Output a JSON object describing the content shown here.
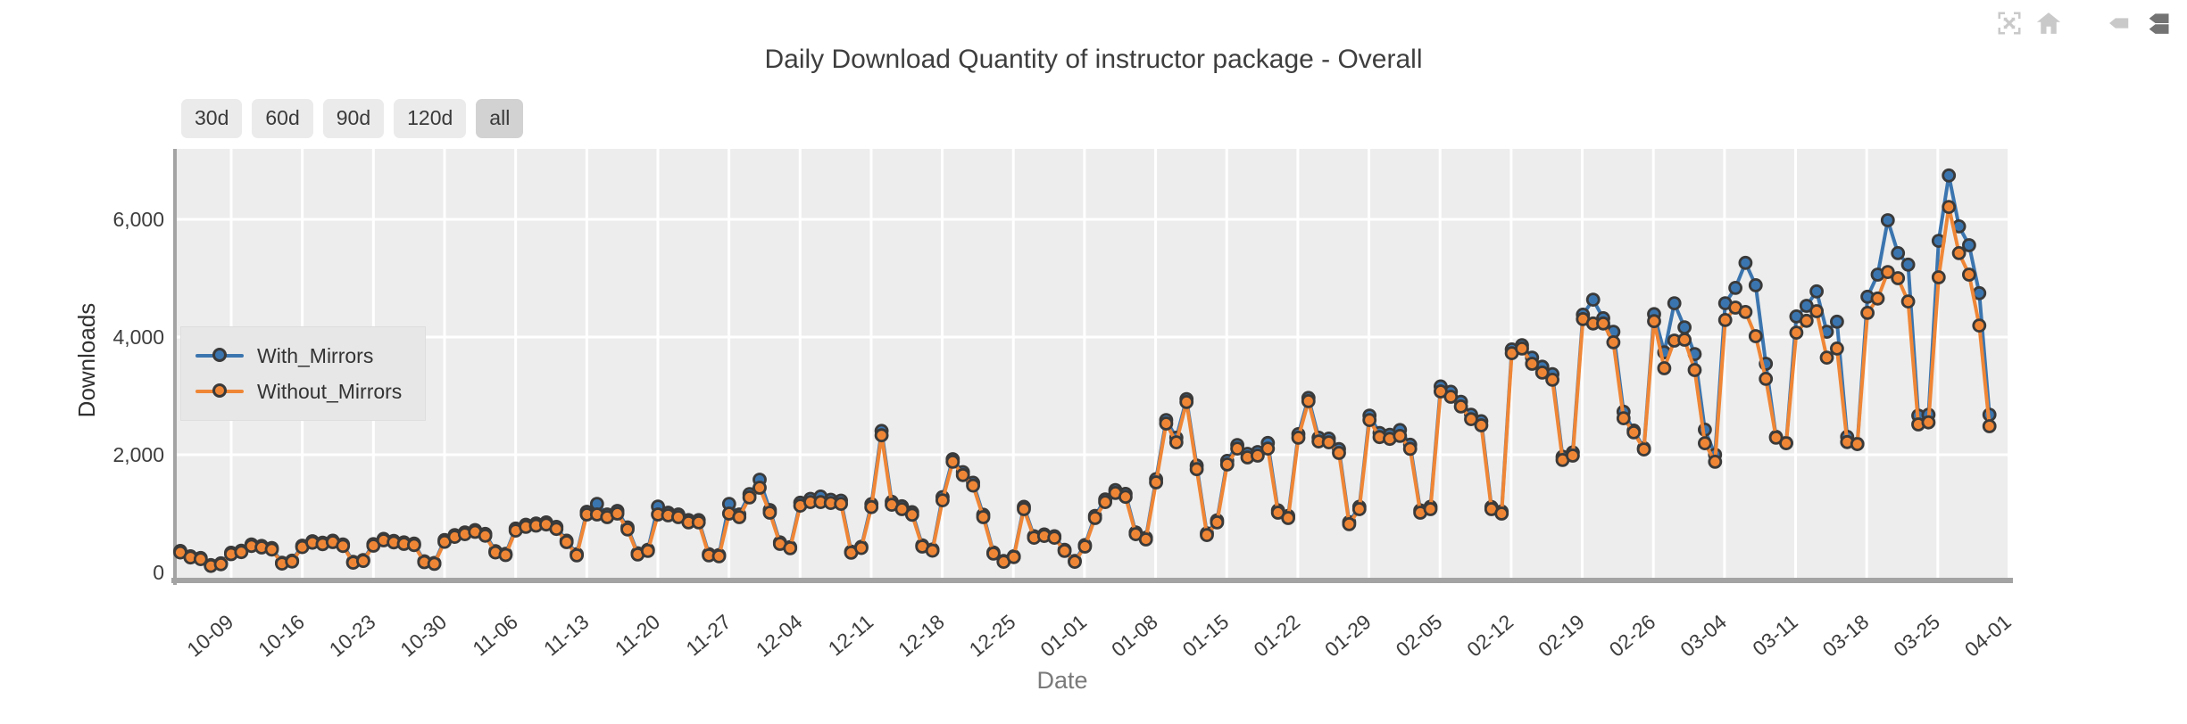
{
  "header": {
    "title": "Daily Download Quantity of instructor package - Overall"
  },
  "toolbar": {
    "buttons": [
      {
        "label": "30d",
        "active": false
      },
      {
        "label": "60d",
        "active": false
      },
      {
        "label": "90d",
        "active": false
      },
      {
        "label": "120d",
        "active": false
      },
      {
        "label": "all",
        "active": true
      }
    ]
  },
  "modebar": {
    "inactive_color": "#c9c9c9",
    "active_color": "#737373",
    "icons": [
      {
        "name": "autoscale",
        "active": false
      },
      {
        "name": "reset-axes",
        "active": false
      },
      {
        "name": "hover-closest",
        "active": false
      },
      {
        "name": "hover-compare",
        "active": true
      }
    ]
  },
  "chart_data": {
    "type": "line",
    "title": "Daily Download Quantity of instructor package - Overall",
    "xlabel": "Date",
    "ylabel": "Downloads",
    "ylim": [
      0,
      7200
    ],
    "yticks": [
      0,
      2000,
      4000,
      6000
    ],
    "ytick_labels": [
      "0",
      "2,000",
      "4,000",
      "6,000"
    ],
    "xticks": [
      "10-09",
      "10-16",
      "10-23",
      "10-30",
      "11-06",
      "11-13",
      "11-20",
      "11-27",
      "12-04",
      "12-11",
      "12-18",
      "12-25",
      "01-01",
      "01-08",
      "01-15",
      "01-22",
      "01-29",
      "02-05",
      "02-12",
      "02-19",
      "02-26",
      "03-04",
      "03-11",
      "03-18",
      "03-25",
      "04-01"
    ],
    "grid": true,
    "legend_position": "middle-left",
    "plot_bg": "#ededed",
    "grid_color": "#ffffff",
    "spine_color": "#a3a3a3",
    "tick_color": "#3d3d3d",
    "marker_edge": "#3a3a3a",
    "dates": [
      "10-04",
      "10-05",
      "10-06",
      "10-07",
      "10-08",
      "10-09",
      "10-10",
      "10-11",
      "10-12",
      "10-13",
      "10-14",
      "10-15",
      "10-16",
      "10-17",
      "10-18",
      "10-19",
      "10-20",
      "10-21",
      "10-22",
      "10-23",
      "10-24",
      "10-25",
      "10-26",
      "10-27",
      "10-28",
      "10-29",
      "10-30",
      "10-31",
      "11-01",
      "11-02",
      "11-03",
      "11-04",
      "11-05",
      "11-06",
      "11-07",
      "11-08",
      "11-09",
      "11-10",
      "11-11",
      "11-12",
      "11-13",
      "11-14",
      "11-15",
      "11-16",
      "11-17",
      "11-18",
      "11-19",
      "11-20",
      "11-21",
      "11-22",
      "11-23",
      "11-24",
      "11-25",
      "11-26",
      "11-27",
      "11-28",
      "11-29",
      "11-30",
      "12-01",
      "12-02",
      "12-03",
      "12-04",
      "12-05",
      "12-06",
      "12-07",
      "12-08",
      "12-09",
      "12-10",
      "12-11",
      "12-12",
      "12-13",
      "12-14",
      "12-15",
      "12-16",
      "12-17",
      "12-18",
      "12-19",
      "12-20",
      "12-21",
      "12-22",
      "12-23",
      "12-24",
      "12-25",
      "12-26",
      "12-27",
      "12-28",
      "12-29",
      "12-30",
      "12-31",
      "01-01",
      "01-02",
      "01-03",
      "01-04",
      "01-05",
      "01-06",
      "01-07",
      "01-08",
      "01-09",
      "01-10",
      "01-11",
      "01-12",
      "01-13",
      "01-14",
      "01-15",
      "01-16",
      "01-17",
      "01-18",
      "01-19",
      "01-20",
      "01-21",
      "01-22",
      "01-23",
      "01-24",
      "01-25",
      "01-26",
      "01-27",
      "01-28",
      "01-29",
      "01-30",
      "01-31",
      "02-01",
      "02-02",
      "02-03",
      "02-04",
      "02-05",
      "02-06",
      "02-07",
      "02-08",
      "02-09",
      "02-10",
      "02-11",
      "02-12",
      "02-13",
      "02-14",
      "02-15",
      "02-16",
      "02-17",
      "02-18",
      "02-19",
      "02-20",
      "02-21",
      "02-22",
      "02-23",
      "02-24",
      "02-25",
      "02-26",
      "02-27",
      "02-28",
      "02-29",
      "03-01",
      "03-02",
      "03-03",
      "03-04",
      "03-05",
      "03-06",
      "03-07",
      "03-08",
      "03-09",
      "03-10",
      "03-11",
      "03-12",
      "03-13",
      "03-14",
      "03-15",
      "03-16",
      "03-17",
      "03-18",
      "03-19",
      "03-20",
      "03-21",
      "03-22",
      "03-23",
      "03-24",
      "03-25",
      "03-26",
      "03-27",
      "03-28",
      "03-29",
      "03-30"
    ],
    "series": [
      {
        "name": "With_Mirrors",
        "color": "#3b75af",
        "values": [
          365,
          275,
          245,
          125,
          155,
          335,
          370,
          475,
          450,
          415,
          165,
          200,
          455,
          530,
          505,
          540,
          475,
          180,
          210,
          480,
          570,
          535,
          510,
          490,
          190,
          160,
          550,
          635,
          680,
          720,
          655,
          360,
          315,
          745,
          810,
          830,
          850,
          775,
          540,
          310,
          1030,
          1165,
          985,
          1045,
          765,
          325,
          385,
          1120,
          1015,
          985,
          890,
          890,
          310,
          295,
          1165,
          985,
          1330,
          1575,
          1060,
          510,
          430,
          1185,
          1250,
          1290,
          1235,
          1220,
          355,
          435,
          1160,
          2405,
          1200,
          1125,
          1025,
          460,
          390,
          1280,
          1925,
          1705,
          1525,
          980,
          340,
          195,
          275,
          1115,
          615,
          645,
          615,
          385,
          195,
          465,
          960,
          1240,
          1400,
          1335,
          680,
          590,
          1585,
          2590,
          2290,
          2945,
          1815,
          665,
          885,
          1895,
          2165,
          2015,
          2045,
          2200,
          1055,
          960,
          2350,
          2965,
          2290,
          2275,
          2095,
          855,
          1115,
          2665,
          2370,
          2340,
          2420,
          2170,
          1055,
          1115,
          3160,
          3070,
          2900,
          2680,
          2570,
          1110,
          1035,
          3790,
          3860,
          3650,
          3495,
          3370,
          1965,
          2040,
          4380,
          4635,
          4320,
          4090,
          2730,
          2410,
          2110,
          4390,
          3740,
          4575,
          4165,
          3710,
          2425,
          2000,
          4575,
          4835,
          5260,
          4880,
          3545,
          2305,
          2200,
          4350,
          4530,
          4775,
          4090,
          4260,
          2305,
          2185,
          4685,
          5060,
          5985,
          5425,
          5230,
          2665,
          2680,
          5635,
          6745,
          5880,
          5560,
          4745,
          2680
        ]
      },
      {
        "name": "Without_Mirrors",
        "color": "#ef8636",
        "values": [
          340,
          255,
          225,
          110,
          140,
          310,
          345,
          450,
          425,
          390,
          150,
          185,
          430,
          505,
          480,
          515,
          450,
          165,
          195,
          455,
          545,
          510,
          485,
          465,
          175,
          145,
          520,
          605,
          650,
          690,
          625,
          340,
          295,
          710,
          775,
          795,
          815,
          740,
          515,
          290,
          985,
          985,
          940,
          1000,
          730,
          305,
          365,
          985,
          970,
          940,
          850,
          850,
          290,
          275,
          1000,
          940,
          1275,
          1440,
          1015,
          485,
          410,
          1135,
          1195,
          1195,
          1180,
          1165,
          335,
          415,
          1110,
          2330,
          1150,
          1075,
          980,
          440,
          370,
          1225,
          1880,
          1655,
          1475,
          940,
          320,
          180,
          260,
          1075,
          590,
          620,
          590,
          365,
          180,
          440,
          925,
          1195,
          1350,
          1285,
          650,
          560,
          1530,
          2530,
          2210,
          2895,
          1755,
          635,
          850,
          1835,
          2105,
          1955,
          1985,
          2105,
          1015,
          925,
          2290,
          2910,
          2225,
          2210,
          2030,
          820,
          1075,
          2590,
          2300,
          2270,
          2320,
          2100,
          1015,
          1075,
          3075,
          2985,
          2820,
          2605,
          2500,
          1075,
          1000,
          3725,
          3805,
          3545,
          3395,
          3275,
          1910,
          1985,
          4305,
          4230,
          4230,
          3910,
          2620,
          2380,
          2090,
          4270,
          3470,
          3940,
          3955,
          3440,
          2195,
          1880,
          4290,
          4500,
          4425,
          4015,
          3290,
          2290,
          2195,
          4075,
          4275,
          4440,
          3650,
          3805,
          2215,
          2180,
          4410,
          4655,
          5105,
          5000,
          4605,
          2515,
          2550,
          5015,
          6210,
          5425,
          5060,
          4195,
          2485
        ]
      }
    ]
  }
}
